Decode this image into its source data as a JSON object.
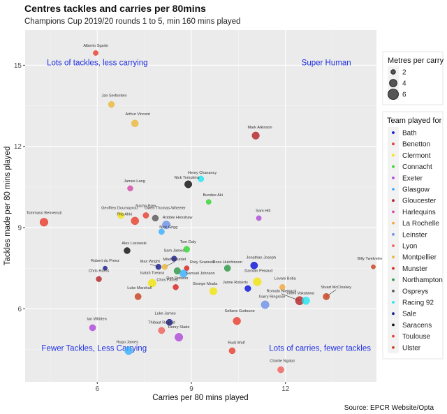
{
  "chart_data": {
    "type": "scatter",
    "title": "Centres tackles and carries per 80mins",
    "subtitle": "Champions Cup 2019/20 rounds 1 to 5, min 160 mins played",
    "xlabel": "Carries per 80 mins played",
    "ylabel": "Tackles made per 80 mins played",
    "caption": "Source: EPCR Website/Opta",
    "xlim": [
      3.7,
      14.9
    ],
    "ylim": [
      3.3,
      16.3
    ],
    "xticks": [
      6,
      9,
      12
    ],
    "yticks": [
      6,
      9,
      12,
      15
    ],
    "quadrant_labels": [
      {
        "text": "Lots of tackles, less carrying",
        "x": 6.0,
        "y": 15.0
      },
      {
        "text": "Super Human",
        "x": 13.3,
        "y": 15.0
      },
      {
        "text": "Fewer Tackles, Less Carrying",
        "x": 5.9,
        "y": 4.45
      },
      {
        "text": "Lots of carries, fewer tackles",
        "x": 13.1,
        "y": 4.45
      }
    ],
    "size_legend": {
      "title": "Metres per carry",
      "values": [
        2,
        4,
        6
      ]
    },
    "team_legend_title": "Team played for",
    "teams": [
      {
        "name": "Bath",
        "color": "#0a14d8"
      },
      {
        "name": "Benetton",
        "color": "#e8402e"
      },
      {
        "name": "Clermont",
        "color": "#f2e40e"
      },
      {
        "name": "Connacht",
        "color": "#33d633"
      },
      {
        "name": "Exeter",
        "color": "#b04bd9"
      },
      {
        "name": "Glasgow",
        "color": "#3bb0ff"
      },
      {
        "name": "Gloucester",
        "color": "#b5262a"
      },
      {
        "name": "Harlequins",
        "color": "#d44ca8"
      },
      {
        "name": "La Rochelle",
        "color": "#f2a93b"
      },
      {
        "name": "Leinster",
        "color": "#6f91e6"
      },
      {
        "name": "Lyon",
        "color": "#f0605a"
      },
      {
        "name": "Montpellier",
        "color": "#eab83a"
      },
      {
        "name": "Munster",
        "color": "#d8231d"
      },
      {
        "name": "Northampton",
        "color": "#2c9a47"
      },
      {
        "name": "Ospreys",
        "color": "#5a5a5a"
      },
      {
        "name": "Racing 92",
        "color": "#25e6f2"
      },
      {
        "name": "Sale",
        "color": "#1a1f8c"
      },
      {
        "name": "Saracens",
        "color": "#111111"
      },
      {
        "name": "Toulouse",
        "color": "#e8412f"
      },
      {
        "name": "Ulster",
        "color": "#c8411f"
      }
    ],
    "points": [
      {
        "name": "Alberto Sgarbi",
        "team": "Benetton",
        "x": 5.95,
        "y": 15.45,
        "m": 2.3
      },
      {
        "name": "Jan Serfontein",
        "team": "Montpellier",
        "x": 6.45,
        "y": 13.55,
        "m": 3.0
      },
      {
        "name": "Arthur Vincent",
        "team": "Montpellier",
        "x": 7.2,
        "y": 12.85,
        "m": 3.6
      },
      {
        "name": "Mark Atkinson",
        "team": "Gloucester",
        "x": 11.05,
        "y": 12.4,
        "m": 3.9
      },
      {
        "name": "Henry Chavancy",
        "team": "Racing 92",
        "x": 9.3,
        "y": 10.8,
        "m": 3.0
      },
      {
        "name": "Nick Tompkins",
        "team": "Saracens",
        "x": 8.9,
        "y": 10.6,
        "m": 3.8
      },
      {
        "name": "James Lang",
        "team": "Harlequins",
        "x": 7.05,
        "y": 10.45,
        "m": 2.6
      },
      {
        "name": "Bundee Aki",
        "team": "Connacht",
        "x": 9.55,
        "y": 9.95,
        "m": 2.3
      },
      {
        "name": "Nacho Brex",
        "team": "Benetton",
        "x": 7.55,
        "y": 9.45,
        "m": 2.8
      },
      {
        "name": "Geoffrey Doumayrou",
        "team": "Clermont",
        "x": 6.75,
        "y": 9.45,
        "m": 3.1
      },
      {
        "name": "Sam Hill",
        "team": "Exeter",
        "x": 11.15,
        "y": 9.35,
        "m": 2.3
      },
      {
        "name": "Owen Thomas-Wheeler",
        "team": "Ospreys",
        "x": 7.85,
        "y": 9.35,
        "m": 3.1
      },
      {
        "name": "Pita Ahki",
        "team": "Toulouse",
        "x": 7.2,
        "y": 9.25,
        "m": 4.1
      },
      {
        "name": "Tommaso Benvenuti",
        "team": "Benetton",
        "x": 4.3,
        "y": 9.2,
        "m": 4.4
      },
      {
        "name": "Robbie Henshaw",
        "team": "Leinster",
        "x": 8.2,
        "y": 9.1,
        "m": 4.3
      },
      {
        "name": "Nick Grigg",
        "team": "Glasgow",
        "x": 8.05,
        "y": 8.85,
        "m": 2.8
      },
      {
        "name": "Tom Daly",
        "team": "Connacht",
        "x": 8.85,
        "y": 8.2,
        "m": 3.0
      },
      {
        "name": "Alex Lozowski",
        "team": "Saracens",
        "x": 6.95,
        "y": 8.15,
        "m": 3.1
      },
      {
        "name": "Sam James",
        "team": "Sale",
        "x": 8.45,
        "y": 7.85,
        "m": 2.6
      },
      {
        "name": "Jonathan Joseph",
        "team": "Bath",
        "x": 11.0,
        "y": 7.6,
        "m": 3.7
      },
      {
        "name": "Max Wright",
        "team": "Sale",
        "x": 7.95,
        "y": 7.55,
        "m": 2.6
      },
      {
        "name": "Mitel Bourdet",
        "team": "Montpellier",
        "x": 8.15,
        "y": 7.55,
        "m": 2.6
      },
      {
        "name": "Rory Scannell",
        "team": "Munster",
        "x": 8.85,
        "y": 7.5,
        "m": 2.2
      },
      {
        "name": "Ross Hutchinson",
        "team": "Northampton",
        "x": 10.15,
        "y": 7.5,
        "m": 3.2
      },
      {
        "name": "Billy Twelvetrees",
        "team": "Ulster",
        "x": 14.8,
        "y": 7.55,
        "m": 1.8
      },
      {
        "name": "Robert du Preez",
        "team": "Sale",
        "x": 6.25,
        "y": 7.5,
        "m": 1.8
      },
      {
        "name": "Dan Robson",
        "team": "Northampton",
        "x": 8.55,
        "y": 7.4,
        "m": 3.4
      },
      {
        "name": "Samuel Johnson",
        "team": "Glasgow",
        "x": 8.75,
        "y": 7.3,
        "m": 3.9
      },
      {
        "name": "Chris Harris",
        "team": "Gloucester",
        "x": 6.05,
        "y": 7.1,
        "m": 2.6
      },
      {
        "name": "Damian Penaud",
        "team": "Clermont",
        "x": 11.1,
        "y": 7.0,
        "m": 4.4
      },
      {
        "name": "Isaiah Toeava",
        "team": "Clermont",
        "x": 7.75,
        "y": 6.95,
        "m": 4.2
      },
      {
        "name": "Chris Farrell",
        "team": "Munster",
        "x": 8.5,
        "y": 6.8,
        "m": 2.6
      },
      {
        "name": "Jamie Roberts",
        "team": "Bath",
        "x": 10.8,
        "y": 6.75,
        "m": 3.0
      },
      {
        "name": "Levani Botia",
        "team": "La Rochelle",
        "x": 11.9,
        "y": 6.8,
        "m": 2.6
      },
      {
        "name": "George Moala",
        "team": "Clermont",
        "x": 9.7,
        "y": 6.65,
        "m": 3.9
      },
      {
        "name": "Stuart McCloskey",
        "team": "Ulster",
        "x": 13.3,
        "y": 6.45,
        "m": 3.3
      },
      {
        "name": "Luke Marshall",
        "team": "Ulster",
        "x": 7.3,
        "y": 6.45,
        "m": 3.2
      },
      {
        "name": "Romain Niemack",
        "team": "Gloucester",
        "x": 12.45,
        "y": 6.3,
        "m": 4.6
      },
      {
        "name": "Virimi Vakatawa",
        "team": "Racing 92",
        "x": 12.65,
        "y": 6.3,
        "m": 4.1
      },
      {
        "name": "Garry Ringrose",
        "team": "Leinster",
        "x": 11.35,
        "y": 6.15,
        "m": 4.3
      },
      {
        "name": "Sofiane Guitoune",
        "team": "Toulouse",
        "x": 10.45,
        "y": 5.55,
        "m": 4.0
      },
      {
        "name": "Luke James",
        "team": "Sale",
        "x": 8.3,
        "y": 5.5,
        "m": 3.2
      },
      {
        "name": "Ian Whitten",
        "team": "Exeter",
        "x": 5.85,
        "y": 5.3,
        "m": 3.2
      },
      {
        "name": "Thibaut Regard",
        "team": "Lyon",
        "x": 8.05,
        "y": 5.2,
        "m": 3.3
      },
      {
        "name": "Henry Slade",
        "team": "Exeter",
        "x": 8.6,
        "y": 4.95,
        "m": 4.3
      },
      {
        "name": "Hugo James",
        "team": "Glasgow",
        "x": 7.0,
        "y": 4.45,
        "m": 4.2
      },
      {
        "name": "Rudi Wulf",
        "team": "Toulouse",
        "x": 10.3,
        "y": 4.45,
        "m": 3.1
      },
      {
        "name": "Charlie Ngatai",
        "team": "Lyon",
        "x": 11.85,
        "y": 3.75,
        "m": 3.2
      }
    ]
  }
}
